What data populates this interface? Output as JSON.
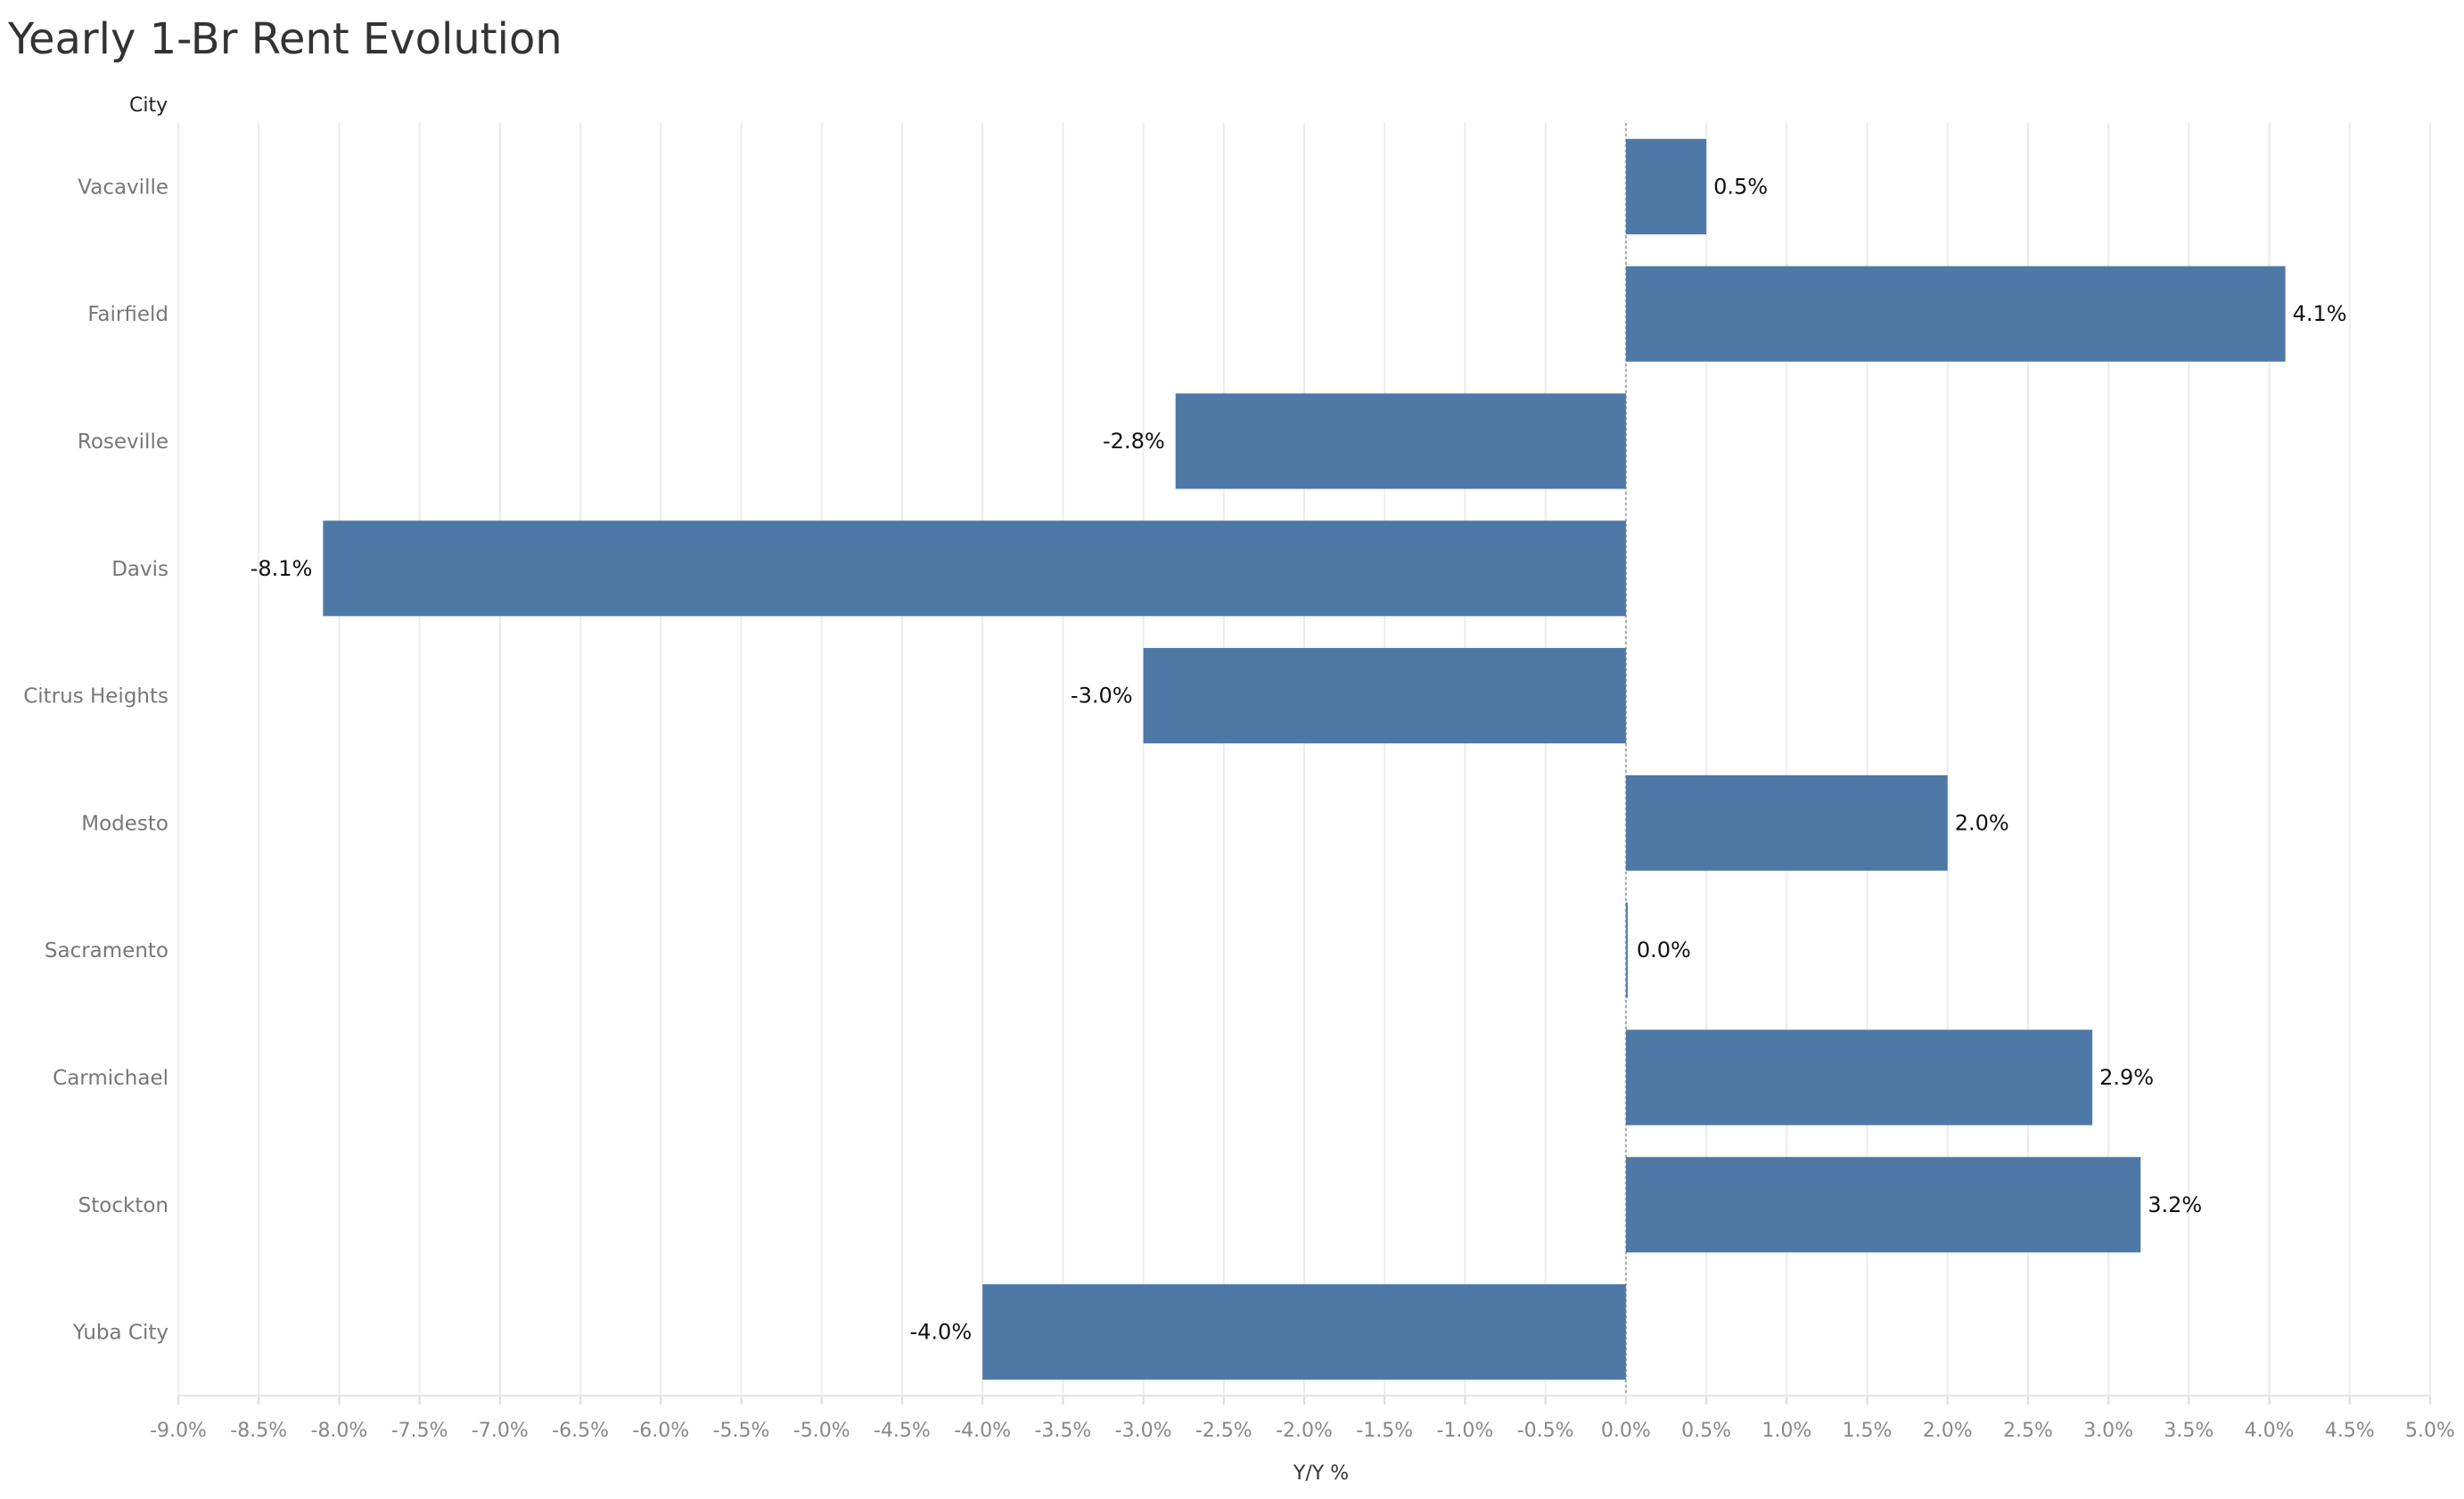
{
  "title": "Yearly 1-Br Rent Evolution",
  "chart_data": {
    "type": "bar",
    "orientation": "horizontal",
    "row_header": "City",
    "xlabel": "Y/Y %",
    "xlim": [
      -9.0,
      5.0
    ],
    "x_ticks": [
      "-9.0%",
      "-8.5%",
      "-8.0%",
      "-7.5%",
      "-7.0%",
      "-6.5%",
      "-6.0%",
      "-5.5%",
      "-5.0%",
      "-4.5%",
      "-4.0%",
      "-3.5%",
      "-3.0%",
      "-2.5%",
      "-2.0%",
      "-1.5%",
      "-1.0%",
      "-0.5%",
      "0.0%",
      "0.5%",
      "1.0%",
      "1.5%",
      "2.0%",
      "2.5%",
      "3.0%",
      "3.5%",
      "4.0%",
      "4.5%",
      "5.0%"
    ],
    "categories": [
      "Vacaville",
      "Fairfield",
      "Roseville",
      "Davis",
      "Citrus Heights",
      "Modesto",
      "Sacramento",
      "Carmichael",
      "Stockton",
      "Yuba City"
    ],
    "values": [
      0.5,
      4.1,
      -2.8,
      -8.1,
      -3.0,
      2.0,
      0.0,
      2.9,
      3.2,
      -4.0
    ],
    "data_labels": [
      "0.5%",
      "4.1%",
      "-2.8%",
      "-8.1%",
      "-3.0%",
      "2.0%",
      "0.0%",
      "2.9%",
      "3.2%",
      "-4.0%"
    ],
    "grid": true,
    "bar_color": "#4e79a7"
  }
}
